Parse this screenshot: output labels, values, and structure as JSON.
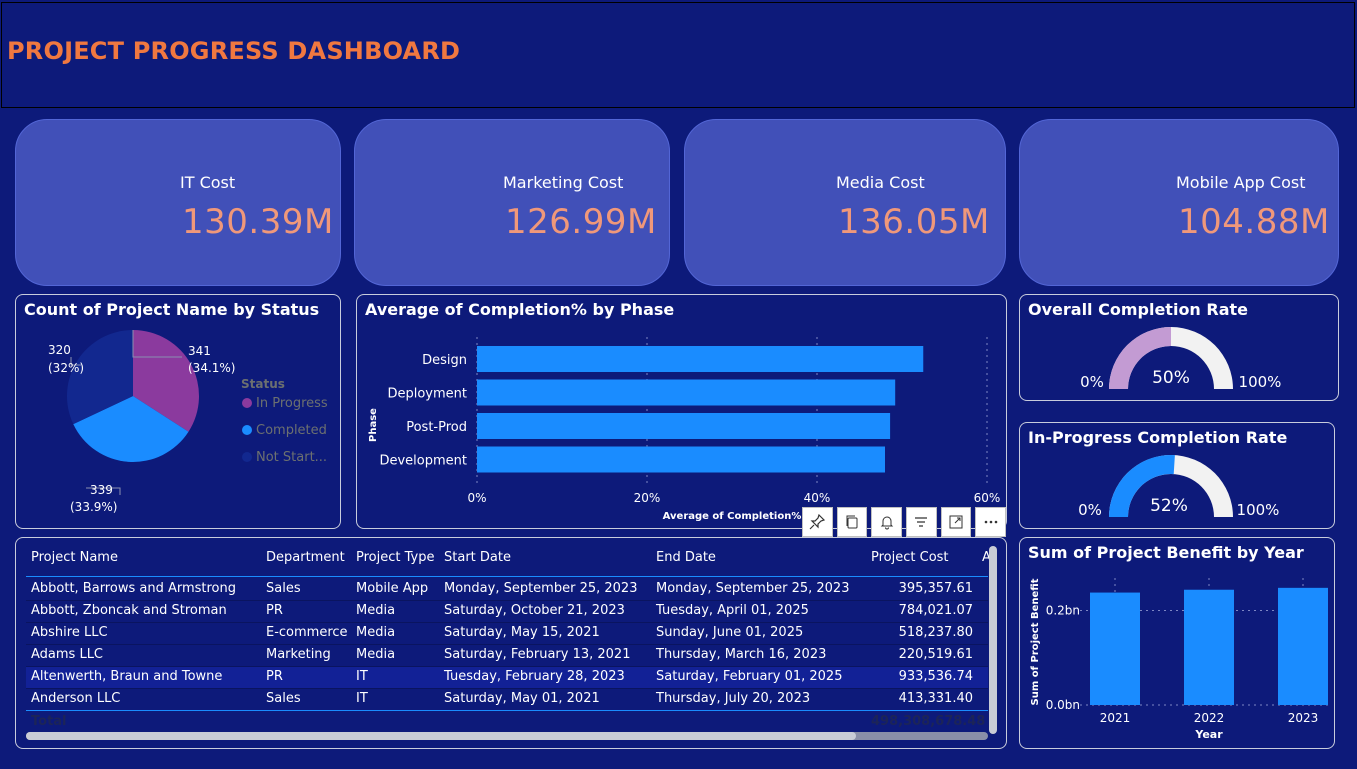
{
  "header": {
    "title": "PROJECT PROGRESS DASHBOARD"
  },
  "kpis": [
    {
      "label": "IT Cost",
      "value": "130.39M"
    },
    {
      "label": "Marketing Cost",
      "value": "126.99M"
    },
    {
      "label": "Media Cost",
      "value": "136.05M"
    },
    {
      "label": "Mobile App Cost",
      "value": "104.88M"
    }
  ],
  "colors": {
    "background": "#0d1a7a",
    "kpi_card": "#4150b8",
    "accent": "#f07840",
    "bar": "#1a8cff",
    "in_progress": "#8b3a9e",
    "completed": "#1a8cff",
    "not_started": "#12288f"
  },
  "chart_data": [
    {
      "type": "pie",
      "title": "Count of Project Name by Status",
      "legend_title": "Status",
      "legend_position": "right",
      "slices": [
        {
          "name": "In Progress",
          "legend_label": "In Progress",
          "value": 341,
          "label": "341",
          "pct": "(34.1%)"
        },
        {
          "name": "Completed",
          "legend_label": "Completed",
          "value": 339,
          "label": "339",
          "pct": "(33.9%)"
        },
        {
          "name": "Not Started",
          "legend_label": "Not Start...",
          "value": 320,
          "label": "320",
          "pct": "(32%)"
        }
      ]
    },
    {
      "type": "bar",
      "orientation": "horizontal",
      "title": "Average of Completion% by Phase",
      "xlabel": "Average of Completion%",
      "ylabel": "Phase",
      "categories": [
        "Design",
        "Deployment",
        "Post-Prod",
        "Development"
      ],
      "values": [
        52.5,
        49.2,
        48.6,
        48.0
      ],
      "xlim": [
        0,
        60
      ],
      "xticks": [
        "0%",
        "20%",
        "40%",
        "60%"
      ],
      "grid": true
    },
    {
      "type": "gauge",
      "title": "Overall Completion Rate",
      "value": 50,
      "value_label": "50%",
      "min_label": "0%",
      "max_label": "100%",
      "fill_color": "#c39bd3"
    },
    {
      "type": "gauge",
      "title": "In-Progress Completion Rate",
      "value": 52,
      "value_label": "52%",
      "min_label": "0%",
      "max_label": "100%",
      "fill_color": "#1a8cff"
    },
    {
      "type": "bar",
      "title": "Sum of Project Benefit by Year",
      "xlabel": "Year",
      "ylabel": "Sum of Project Benefit",
      "categories": [
        "2021",
        "2022",
        "2023"
      ],
      "values": [
        0.238,
        0.244,
        0.248
      ],
      "ylim": [
        0,
        0.29
      ],
      "yticks": [
        {
          "value": 0.0,
          "label": "0.0bn"
        },
        {
          "value": 0.2,
          "label": "0.2bn"
        }
      ],
      "grid": true
    }
  ],
  "table": {
    "columns": [
      "Project Name",
      "Department",
      "Project Type",
      "Start Date",
      "End Date",
      "Project Cost",
      "A"
    ],
    "rows": [
      [
        "Abbott, Barrows and Armstrong",
        "Sales",
        "Mobile App",
        "Monday, September 25, 2023",
        "Monday, September 25, 2023",
        "395,357.61"
      ],
      [
        "Abbott, Zboncak and Stroman",
        "PR",
        "Media",
        "Saturday, October 21, 2023",
        "Tuesday, April 01, 2025",
        "784,021.07"
      ],
      [
        "Abshire LLC",
        "E-commerce",
        "Media",
        "Saturday, May 15, 2021",
        "Sunday, June 01, 2025",
        "518,237.80"
      ],
      [
        "Adams LLC",
        "Marketing",
        "Media",
        "Saturday, February 13, 2021",
        "Thursday, March 16, 2023",
        "220,519.61"
      ],
      [
        "Altenwerth, Braun and Towne",
        "PR",
        "IT",
        "Tuesday, February 28, 2023",
        "Saturday, February 01, 2025",
        "933,536.74"
      ],
      [
        "Anderson LLC",
        "Sales",
        "IT",
        "Saturday, May 01, 2021",
        "Thursday, July 20, 2023",
        "413,331.40"
      ]
    ],
    "total_label": "Total",
    "total_value": "498,308,678.48"
  },
  "toolbar": {
    "icons": [
      "pin-icon",
      "copy-icon",
      "bell-icon",
      "filter-icon",
      "focus-mode-icon",
      "more-options-icon"
    ]
  }
}
